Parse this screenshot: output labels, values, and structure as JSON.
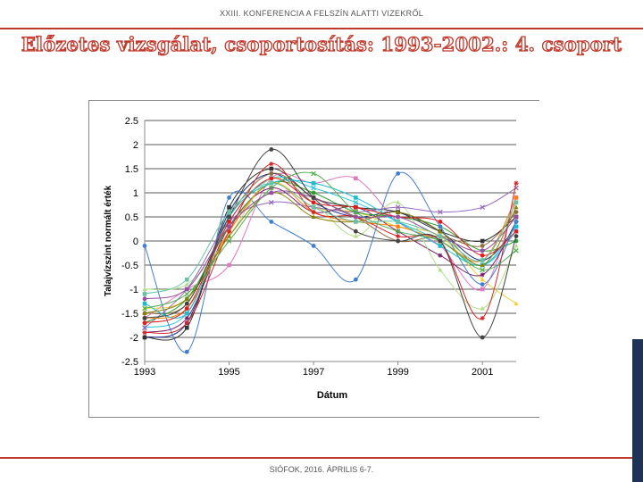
{
  "header": {
    "conference": "XXIII. KONFERENCIA A FELSZÍN ALATTI VIZEKRŐL",
    "title": "Előzetes vizsgálat, csoportosítás: 1993-2002.: 4. csoport"
  },
  "footer": {
    "text": "SIÓFOK, 2016. ÁPRILIS 6-7."
  },
  "colors": {
    "accent": "#c0392b",
    "sidebar": "#1f3356"
  },
  "chart_data": {
    "type": "line",
    "xlabel": "Dátum",
    "ylabel": "Talajvízszint normált érték",
    "x_ticks": [
      "1993",
      "1995",
      "1997",
      "1999",
      "2001"
    ],
    "x": [
      1993.0,
      1994.0,
      1995.0,
      1996.0,
      1997.0,
      1998.0,
      1999.0,
      2000.0,
      2001.0,
      2001.8
    ],
    "xlim": [
      1993.0,
      2001.8
    ],
    "y_ticks": [
      "-2.5",
      "-2",
      "-1.5",
      "-1",
      "-0.5",
      "0",
      "0.5",
      "1",
      "1.5",
      "2",
      "2.5"
    ],
    "ylim": [
      -2.5,
      2.5
    ],
    "grid": "horizontal",
    "series": [
      {
        "color": "#1f2f8a",
        "marker": "circle",
        "values": [
          -2.0,
          -1.7,
          0.6,
          1.4,
          0.8,
          0.5,
          0.6,
          0.2,
          -0.4,
          0.3
        ]
      },
      {
        "color": "#e377c2",
        "marker": "square",
        "values": [
          -1.6,
          -1.0,
          -0.5,
          1.3,
          1.2,
          1.3,
          0.4,
          -0.1,
          -1.0,
          0.9
        ]
      },
      {
        "color": "#f1d232",
        "marker": "triangle",
        "values": [
          -1.4,
          -1.2,
          0.2,
          1.2,
          0.7,
          0.6,
          0.3,
          0.1,
          -0.8,
          -1.3
        ]
      },
      {
        "color": "#27c4e0",
        "marker": "x",
        "values": [
          -1.8,
          -1.5,
          0.4,
          1.3,
          1.1,
          0.8,
          0.4,
          0.0,
          -0.5,
          0.2
        ]
      },
      {
        "color": "#7a1f6b",
        "marker": "star",
        "values": [
          -1.9,
          -1.6,
          0.3,
          1.1,
          0.6,
          0.7,
          0.2,
          -0.3,
          -0.7,
          0.4
        ]
      },
      {
        "color": "#8c6d3f",
        "marker": "circle",
        "values": [
          -1.5,
          -1.3,
          0.5,
          1.4,
          0.9,
          0.5,
          0.0,
          0.1,
          -0.1,
          0.6
        ]
      },
      {
        "color": "#2ca02c",
        "marker": "circle",
        "values": [
          -1.7,
          -1.2,
          0.3,
          1.2,
          1.0,
          0.6,
          0.5,
          0.3,
          -0.2,
          0.0
        ]
      },
      {
        "color": "#333333",
        "marker": "square",
        "values": [
          -2.0,
          -1.8,
          0.7,
          1.5,
          0.9,
          0.7,
          0.6,
          0.2,
          0.0,
          0.5
        ]
      },
      {
        "color": "#3f7fd1",
        "marker": "circle",
        "values": [
          -0.1,
          -2.3,
          0.9,
          0.4,
          -0.1,
          -0.8,
          1.4,
          0.3,
          -0.9,
          0.4
        ]
      },
      {
        "color": "#b2df8a",
        "marker": "triangle",
        "values": [
          -1.0,
          -0.9,
          0.1,
          1.3,
          0.8,
          0.1,
          0.8,
          -0.6,
          -1.4,
          -0.1
        ]
      },
      {
        "color": "#9467bd",
        "marker": "x",
        "values": [
          -1.8,
          -1.0,
          0.4,
          0.8,
          0.7,
          0.6,
          0.7,
          0.6,
          0.7,
          1.1
        ]
      },
      {
        "color": "#ff7f0e",
        "marker": "circle",
        "values": [
          -1.6,
          -1.4,
          0.2,
          1.2,
          0.6,
          0.4,
          0.3,
          0.0,
          -0.4,
          0.9
        ]
      },
      {
        "color": "#d62728",
        "marker": "star",
        "values": [
          -1.9,
          -1.7,
          0.2,
          1.6,
          0.6,
          0.5,
          0.1,
          0.0,
          -1.6,
          1.2
        ]
      },
      {
        "color": "#17becf",
        "marker": "square",
        "values": [
          -1.3,
          -1.5,
          0.5,
          1.2,
          1.2,
          0.9,
          0.4,
          -0.1,
          -0.5,
          0.3
        ]
      },
      {
        "color": "#8b8000",
        "marker": "triangle",
        "values": [
          -1.5,
          -1.2,
          0.1,
          1.0,
          0.5,
          0.4,
          0.6,
          0.2,
          -0.5,
          0.7
        ]
      },
      {
        "color": "#e41a1c",
        "marker": "circle",
        "values": [
          -1.7,
          -1.4,
          0.4,
          1.3,
          0.8,
          0.7,
          0.5,
          0.4,
          -0.3,
          0.2
        ]
      },
      {
        "color": "#4daf4a",
        "marker": "x",
        "values": [
          -1.4,
          -1.1,
          0.0,
          1.1,
          1.4,
          0.6,
          0.2,
          0.0,
          -0.6,
          -0.2
        ]
      },
      {
        "color": "#984ea3",
        "marker": "circle",
        "values": [
          -1.2,
          -1.0,
          0.3,
          1.0,
          0.9,
          0.5,
          0.5,
          0.1,
          -0.2,
          0.5
        ]
      },
      {
        "color": "#444444",
        "marker": "circle",
        "values": [
          -1.6,
          -1.3,
          0.5,
          1.9,
          0.9,
          0.2,
          0.0,
          0.0,
          -2.0,
          0.1
        ]
      },
      {
        "color": "#66c2a5",
        "marker": "square",
        "values": [
          -1.1,
          -0.8,
          0.6,
          1.2,
          0.7,
          0.4,
          0.4,
          0.1,
          -0.4,
          0.8
        ]
      }
    ]
  }
}
